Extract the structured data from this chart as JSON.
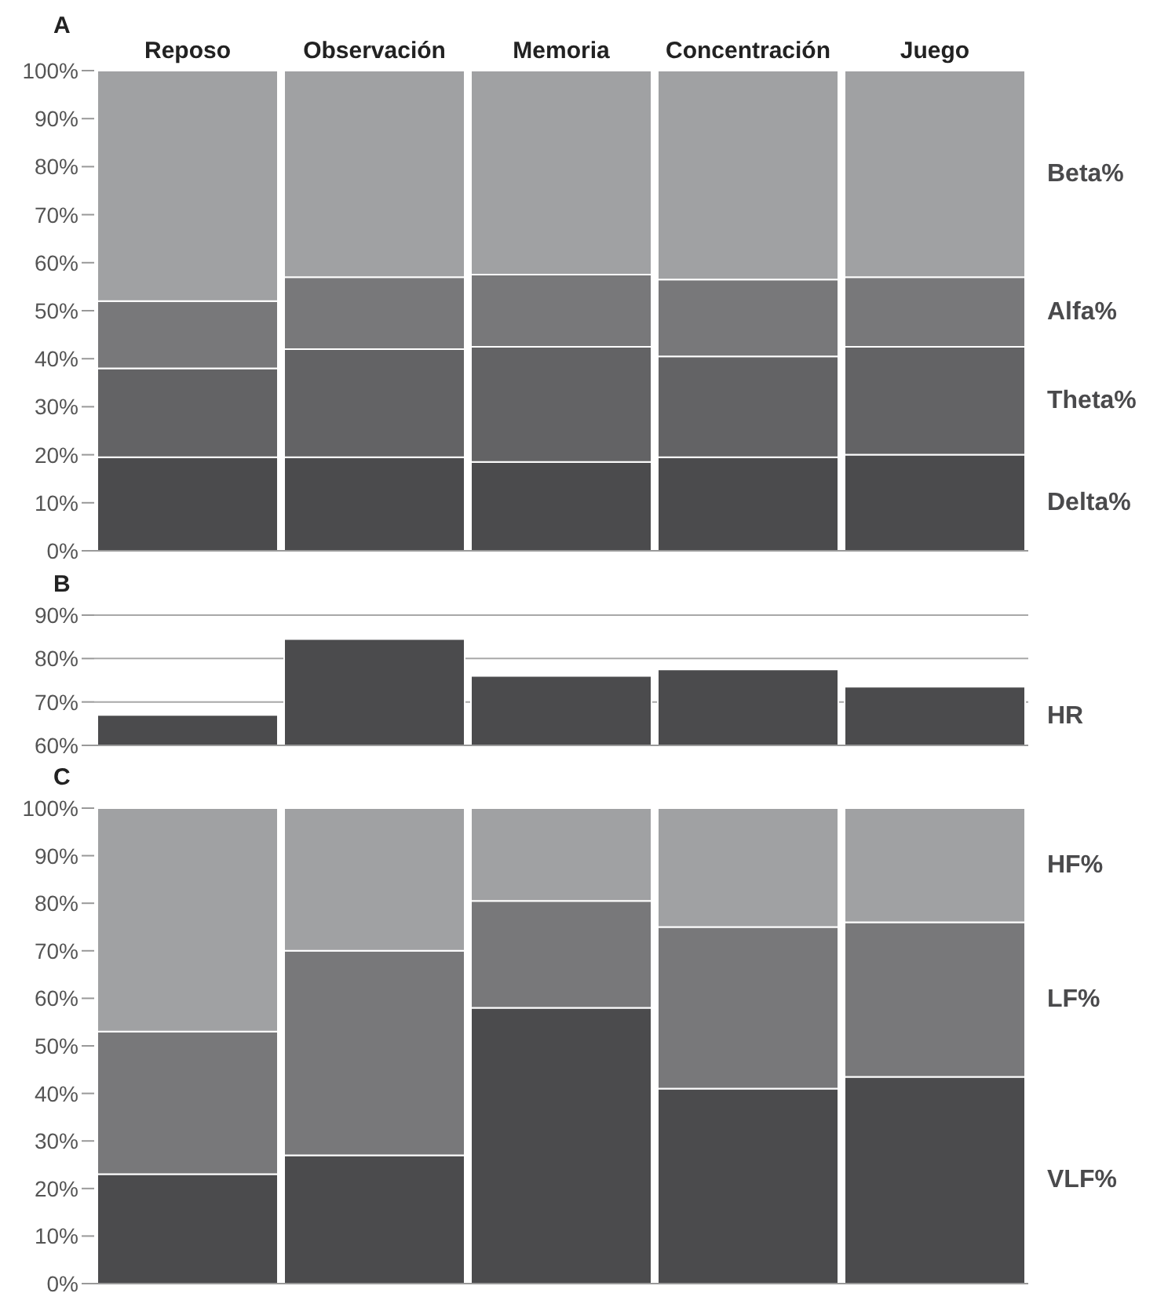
{
  "chart_data": [
    {
      "type": "bar",
      "title": "A",
      "categories": [
        "Reposo",
        "Observación",
        "Memoria",
        "Concentración",
        "Juego"
      ],
      "stacked": true,
      "ylim": [
        0,
        100
      ],
      "yticks": [
        {
          "value": 0,
          "label": "0%"
        },
        {
          "value": 10,
          "label": "10%"
        },
        {
          "value": 20,
          "label": "20%"
        },
        {
          "value": 30,
          "label": "30%"
        },
        {
          "value": 40,
          "label": "40%"
        },
        {
          "value": 50,
          "label": "50%"
        },
        {
          "value": 60,
          "label": "60%"
        },
        {
          "value": 70,
          "label": "70%"
        },
        {
          "value": 80,
          "label": "80%"
        },
        {
          "value": 90,
          "label": "90%"
        },
        {
          "value": 100,
          "label": "100%"
        }
      ],
      "grid": false,
      "series": [
        {
          "name": "Delta%",
          "color": "#4b4b4d",
          "values": [
            19.5,
            19.5,
            18.5,
            19.5,
            20
          ]
        },
        {
          "name": "Theta%",
          "color": "#636365",
          "values": [
            18.5,
            22.5,
            24,
            21,
            22.5
          ]
        },
        {
          "name": "Alfa%",
          "color": "#78787a",
          "values": [
            14,
            15,
            15,
            16,
            14.5
          ]
        },
        {
          "name": "Beta%",
          "color": "#a0a1a3",
          "values": [
            48,
            43,
            42.5,
            43.5,
            43
          ]
        }
      ]
    },
    {
      "type": "bar",
      "title": "B",
      "categories": [
        null,
        null,
        null,
        null,
        null
      ],
      "tick_labels": "y",
      "ylim": [
        60,
        90
      ],
      "yticks": [
        {
          "value": 60,
          "label": "60%"
        },
        {
          "value": 70,
          "label": "70%"
        },
        {
          "value": 80,
          "label": "80%"
        },
        {
          "value": 90,
          "label": "90%"
        }
      ],
      "grid": "y",
      "series": [
        {
          "name": "HR",
          "color": "#4b4b4d",
          "values": [
            67,
            84.5,
            76,
            77.5,
            73.5
          ]
        }
      ]
    },
    {
      "type": "bar",
      "title": "C",
      "categories": [
        null,
        null,
        null,
        null,
        null
      ],
      "tick_labels": "y",
      "stacked": true,
      "ylim": [
        0,
        100
      ],
      "yticks": [
        {
          "value": 0,
          "label": "0%"
        },
        {
          "value": 10,
          "label": "10%"
        },
        {
          "value": 20,
          "label": "20%"
        },
        {
          "value": 30,
          "label": "30%"
        },
        {
          "value": 40,
          "label": "40%"
        },
        {
          "value": 50,
          "label": "50%"
        },
        {
          "value": 60,
          "label": "60%"
        },
        {
          "value": 70,
          "label": "70%"
        },
        {
          "value": 80,
          "label": "80%"
        },
        {
          "value": 90,
          "label": "90%"
        },
        {
          "value": 100,
          "label": "100%"
        }
      ],
      "grid": false,
      "series": [
        {
          "name": "VLF%",
          "color": "#4b4b4d",
          "values": [
            23,
            27,
            58,
            41,
            43.5
          ]
        },
        {
          "name": "LF%",
          "color": "#78787a",
          "values": [
            30,
            43,
            22.5,
            34,
            32.5
          ]
        },
        {
          "name": "HF%",
          "color": "#a0a1a3",
          "values": [
            47,
            30,
            19.5,
            25,
            24
          ]
        }
      ]
    }
  ]
}
